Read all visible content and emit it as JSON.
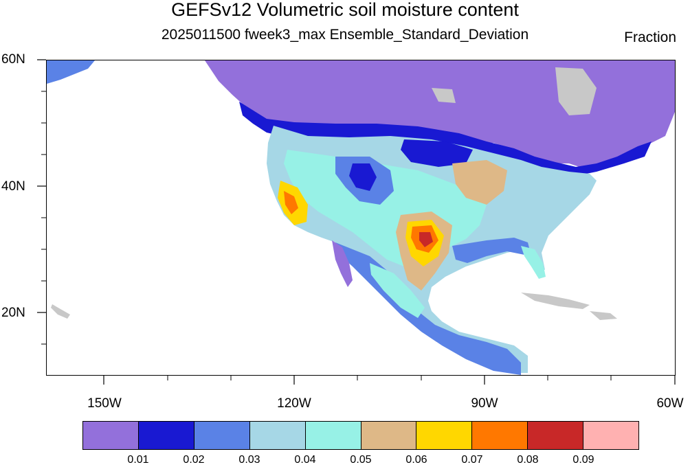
{
  "title": "GEFSv12 Volumetric soil moisture content",
  "subtitle": "2025011500 fweek3_max Ensemble_Standard_Deviation",
  "units": "Fraction",
  "map": {
    "lat_labels": [
      "60N",
      "40N",
      "20N"
    ],
    "lon_labels": [
      "150W",
      "120W",
      "90W",
      "60W"
    ],
    "lon_range": [
      -159,
      -61
    ],
    "lat_range": [
      10,
      60
    ],
    "colors": {
      "c1": "#9370db",
      "c2": "#1919d2",
      "c3": "#5a82e6",
      "c4": "#a6d7e6",
      "c5": "#97f1e6",
      "c6": "#deb887",
      "c7": "#ffd700",
      "c8": "#ff7800",
      "c9": "#c82828",
      "c10": "#ffb1b1",
      "missing": "#c8c8c8"
    }
  },
  "colorbar": {
    "labels": [
      "0.01",
      "0.02",
      "0.03",
      "0.04",
      "0.05",
      "0.06",
      "0.07",
      "0.08",
      "0.09"
    ],
    "colors": [
      "#9370db",
      "#1919d2",
      "#5a82e6",
      "#a6d7e6",
      "#97f1e6",
      "#deb887",
      "#ffd700",
      "#ff7800",
      "#c82828",
      "#ffb1b1"
    ]
  }
}
